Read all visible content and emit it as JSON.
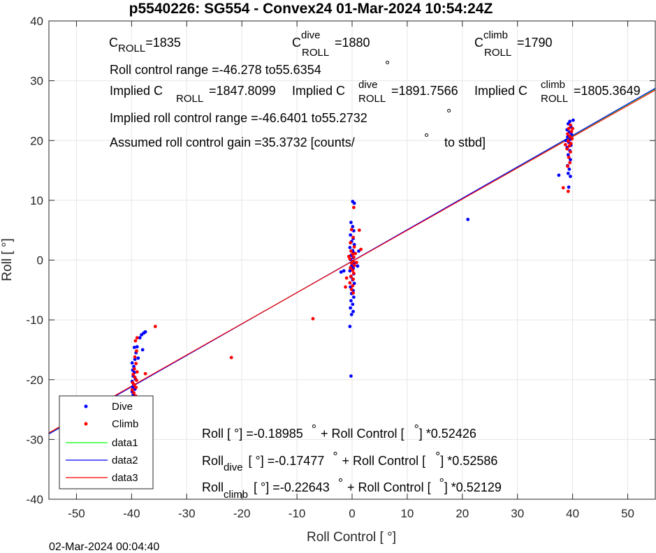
{
  "chart_data": {
    "type": "scatter",
    "title": "p5540226: SG554 - Convex24 01-Mar-2024 10:54:24Z",
    "xlabel": "Roll Control [   °]",
    "ylabel": "Roll [  °]",
    "xlim": [
      -55,
      55
    ],
    "ylim": [
      -40,
      40
    ],
    "xticks": [
      -50,
      -40,
      -30,
      -20,
      -10,
      0,
      10,
      20,
      30,
      40,
      50
    ],
    "yticks": [
      -40,
      -30,
      -20,
      -10,
      0,
      10,
      20,
      30,
      40
    ],
    "xtick_labels": [
      "-50",
      "-40",
      "-30",
      "-20",
      "-10",
      "0",
      "10",
      "20",
      "30",
      "40",
      "50"
    ],
    "ytick_labels": [
      "-40",
      "-30",
      "-20",
      "-10",
      "0",
      "10",
      "20",
      "30",
      "40"
    ],
    "grid": true,
    "legend_position": "bottom-left",
    "series": [
      {
        "name": "Dive",
        "kind": "points",
        "color": "#0000ff",
        "points": [
          [
            -39.8,
            -25.0
          ],
          [
            -39.6,
            -24.3
          ],
          [
            -39.9,
            -23.5
          ],
          [
            -39.5,
            -23.0
          ],
          [
            -39.7,
            -22.5
          ],
          [
            -39.9,
            -22.0
          ],
          [
            -39.4,
            -21.6
          ],
          [
            -39.8,
            -21.2
          ],
          [
            -39.6,
            -20.8
          ],
          [
            -39.9,
            -20.3
          ],
          [
            -39.3,
            -19.9
          ],
          [
            -39.7,
            -19.4
          ],
          [
            -39.5,
            -18.8
          ],
          [
            -39.8,
            -18.4
          ],
          [
            -39.6,
            -17.8
          ],
          [
            -39.9,
            -17.2
          ],
          [
            -39.4,
            -16.6
          ],
          [
            -39.2,
            -15.5
          ],
          [
            -39.5,
            -14.6
          ],
          [
            -39.0,
            -14.5
          ],
          [
            -38.5,
            -13.0
          ],
          [
            -38.2,
            -12.5
          ],
          [
            -37.8,
            -12.2
          ],
          [
            -37.5,
            -12.0
          ],
          [
            -38.0,
            -15.0
          ],
          [
            -38.8,
            -16.4
          ],
          [
            0.1,
            9.8
          ],
          [
            0.4,
            9.5
          ],
          [
            -0.2,
            6.3
          ],
          [
            0.1,
            5.6
          ],
          [
            0.3,
            4.9
          ],
          [
            -0.3,
            4.2
          ],
          [
            0.2,
            3.6
          ],
          [
            -0.1,
            3.1
          ],
          [
            0.4,
            2.6
          ],
          [
            -0.4,
            2.1
          ],
          [
            0.1,
            1.6
          ],
          [
            0.3,
            1.2
          ],
          [
            -0.2,
            0.8
          ],
          [
            0.2,
            0.4
          ],
          [
            -0.3,
            0.1
          ],
          [
            0.1,
            -0.3
          ],
          [
            0.4,
            -0.6
          ],
          [
            -0.1,
            -1.0
          ],
          [
            0.2,
            -1.4
          ],
          [
            -0.4,
            -1.8
          ],
          [
            0.3,
            -2.3
          ],
          [
            -0.2,
            -2.8
          ],
          [
            0.1,
            -3.3
          ],
          [
            0.4,
            -3.9
          ],
          [
            -0.3,
            -4.5
          ],
          [
            0.2,
            -5.1
          ],
          [
            -0.1,
            -5.6
          ],
          [
            0.3,
            -6.2
          ],
          [
            -0.2,
            -6.8
          ],
          [
            0.1,
            -7.4
          ],
          [
            -0.3,
            -8.0
          ],
          [
            0.2,
            -8.6
          ],
          [
            -0.1,
            -9.1
          ],
          [
            -0.4,
            -11.1
          ],
          [
            -0.2,
            -19.4
          ],
          [
            -2.0,
            -2.0
          ],
          [
            -1.5,
            -1.8
          ],
          [
            1.2,
            1.5
          ],
          [
            1.0,
            -1.0
          ],
          [
            21.0,
            6.8
          ],
          [
            39.5,
            23.2
          ],
          [
            39.2,
            22.8
          ],
          [
            39.7,
            22.3
          ],
          [
            39.0,
            21.8
          ],
          [
            39.4,
            21.4
          ],
          [
            39.8,
            21.0
          ],
          [
            39.1,
            20.6
          ],
          [
            39.6,
            20.2
          ],
          [
            39.3,
            19.7
          ],
          [
            39.7,
            19.2
          ],
          [
            39.0,
            18.8
          ],
          [
            39.5,
            18.3
          ],
          [
            39.2,
            17.6
          ],
          [
            39.6,
            16.8
          ],
          [
            39.1,
            15.8
          ],
          [
            39.4,
            15.2
          ],
          [
            39.2,
            14.5
          ],
          [
            39.6,
            14.0
          ],
          [
            37.5,
            14.2
          ],
          [
            39.3,
            12.2
          ],
          [
            40.1,
            23.4
          ],
          [
            38.8,
            20.0
          ]
        ]
      },
      {
        "name": "Climb",
        "kind": "points",
        "color": "#ff0000",
        "points": [
          [
            -39.5,
            -24.0
          ],
          [
            -39.8,
            -23.2
          ],
          [
            -39.3,
            -22.7
          ],
          [
            -39.6,
            -22.2
          ],
          [
            -39.9,
            -21.7
          ],
          [
            -39.2,
            -21.3
          ],
          [
            -39.5,
            -20.9
          ],
          [
            -39.8,
            -20.5
          ],
          [
            -39.1,
            -20.1
          ],
          [
            -39.4,
            -19.6
          ],
          [
            -39.7,
            -19.1
          ],
          [
            -39.0,
            -18.7
          ],
          [
            -39.5,
            -18.2
          ],
          [
            -39.2,
            -17.3
          ],
          [
            -39.4,
            -16.2
          ],
          [
            -39.1,
            -15.2
          ],
          [
            -39.3,
            -13.5
          ],
          [
            -39.0,
            -13.0
          ],
          [
            -35.7,
            -11.1
          ],
          [
            -37.5,
            -19.0
          ],
          [
            -21.9,
            -16.3
          ],
          [
            -7.1,
            -9.8
          ],
          [
            0.3,
            8.8
          ],
          [
            -0.1,
            5.1
          ],
          [
            0.2,
            3.8
          ],
          [
            -0.3,
            2.9
          ],
          [
            0.4,
            2.2
          ],
          [
            -0.2,
            1.5
          ],
          [
            0.1,
            1.0
          ],
          [
            0.3,
            0.5
          ],
          [
            -0.4,
            0.2
          ],
          [
            0.2,
            -0.2
          ],
          [
            -0.1,
            -0.5
          ],
          [
            0.4,
            -0.9
          ],
          [
            -0.3,
            -1.3
          ],
          [
            0.1,
            -1.7
          ],
          [
            0.3,
            -2.2
          ],
          [
            -0.2,
            -2.7
          ],
          [
            0.2,
            -3.2
          ],
          [
            -0.4,
            -3.8
          ],
          [
            0.1,
            -4.3
          ],
          [
            -0.1,
            -4.9
          ],
          [
            0.2,
            -5.5
          ],
          [
            -1.2,
            -4.5
          ],
          [
            -1.0,
            -3.0
          ],
          [
            1.3,
            5.0
          ],
          [
            1.6,
            1.8
          ],
          [
            0.8,
            -0.4
          ],
          [
            -0.6,
            0.6
          ],
          [
            0.6,
            1.1
          ],
          [
            39.6,
            22.6
          ],
          [
            39.3,
            22.0
          ],
          [
            39.8,
            21.5
          ],
          [
            39.1,
            21.1
          ],
          [
            39.5,
            20.7
          ],
          [
            39.9,
            20.3
          ],
          [
            39.2,
            19.9
          ],
          [
            39.7,
            19.5
          ],
          [
            39.4,
            19.1
          ],
          [
            39.0,
            18.6
          ],
          [
            39.6,
            18.1
          ],
          [
            39.3,
            17.2
          ],
          [
            39.5,
            16.3
          ],
          [
            39.1,
            15.7
          ],
          [
            38.7,
            19.3
          ],
          [
            40.0,
            22.0
          ],
          [
            38.3,
            12.1
          ],
          [
            39.2,
            11.5
          ]
        ]
      },
      {
        "name": "data1",
        "kind": "line",
        "color": "#00ff00",
        "intercept": -0.18985,
        "slope": 0.52426
      },
      {
        "name": "data2",
        "kind": "line",
        "color": "#0000ff",
        "intercept": -0.17477,
        "slope": 0.52586
      },
      {
        "name": "data3",
        "kind": "line",
        "color": "#ff0000",
        "intercept": -0.22643,
        "slope": 0.52129
      }
    ],
    "annotations": {
      "c_roll": {
        "base": "C",
        "sub": "ROLL",
        "value": "=1835"
      },
      "c_roll_dive": {
        "base": "C",
        "sup": "dive",
        "sub": "ROLL",
        "value": "=1880"
      },
      "c_roll_climb": {
        "base": "C",
        "sup": "climb",
        "sub": "ROLL",
        "value": "=1790"
      },
      "roll_control_range": "Roll control range =-46.278 to55.6354",
      "range_marker": "°",
      "implied_c": {
        "prefix": "Implied C",
        "sub": "ROLL",
        "value": "=1847.8099"
      },
      "implied_c_dive": {
        "prefix": "Implied C",
        "sup": "dive",
        "sub": "ROLL",
        "value": "=1891.7566"
      },
      "implied_c_climb": {
        "prefix": "Implied C",
        "sup": "climb",
        "sub": "ROLL",
        "value": "=1805.3649"
      },
      "implied_range": "Implied roll control range =-46.6401 to55.2732",
      "implied_range_marker": "°",
      "gain_text": "Assumed roll control gain =35.3732 [counts/",
      "gain_degree": "°",
      "gain_suffix": "to stbd]",
      "fit_all": {
        "lhs": "Roll [  °] =-0.18985",
        "deg": "°",
        "rhs": "+ Roll Control [",
        "deg2": "°",
        "end": "] *0.52426"
      },
      "fit_dive": {
        "base": "Roll",
        "sub": "dive",
        "lhs": "[  °] =-0.17477",
        "deg": "°",
        "rhs": "+ Roll Control [",
        "deg2": "°",
        "end": "] *0.52586"
      },
      "fit_climb": {
        "base": "Roll",
        "sub": "climb",
        "lhs": "[  °] =-0.22643",
        "deg": "°",
        "rhs": "+ Roll Control [",
        "deg2": "°",
        "end": "] *0.52129"
      }
    },
    "footer": "02-Mar-2024 00:04:40"
  }
}
